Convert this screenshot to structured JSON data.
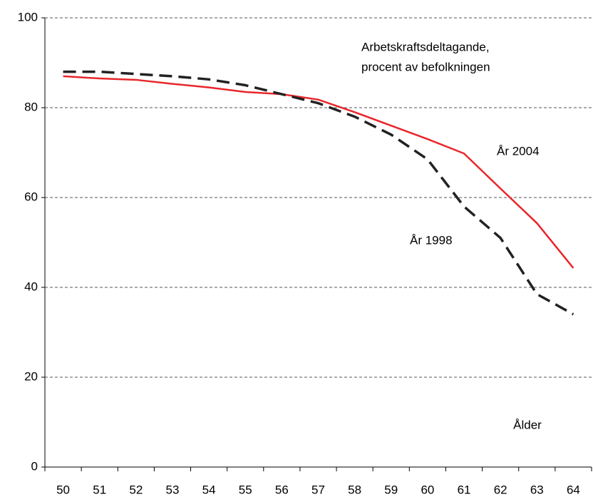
{
  "chart_data": {
    "type": "line",
    "annotation": [
      "Arbetskraftsdeltagande,",
      "procent av befolkningen"
    ],
    "x_label": "Ålder",
    "categories": [
      "50",
      "51",
      "52",
      "53",
      "54",
      "55",
      "56",
      "57",
      "58",
      "59",
      "60",
      "61",
      "62",
      "63",
      "64"
    ],
    "series": [
      {
        "name": "År 2004",
        "color": "#e8262b",
        "dash": "solid",
        "values": [
          87,
          86.5,
          86.2,
          85.3,
          84.5,
          83.5,
          83,
          81.8,
          79,
          76,
          73,
          69.8,
          62,
          54.3,
          44.3
        ]
      },
      {
        "name": "År 1998",
        "color": "#222222",
        "dash": "dashed",
        "values": [
          88,
          88,
          87.5,
          87,
          86.3,
          85,
          83,
          81,
          78,
          74,
          68.5,
          58,
          51,
          38.5,
          34
        ]
      }
    ],
    "ylim": [
      0,
      100
    ],
    "yticks": [
      0,
      20,
      40,
      60,
      80,
      100
    ],
    "grid": true
  }
}
